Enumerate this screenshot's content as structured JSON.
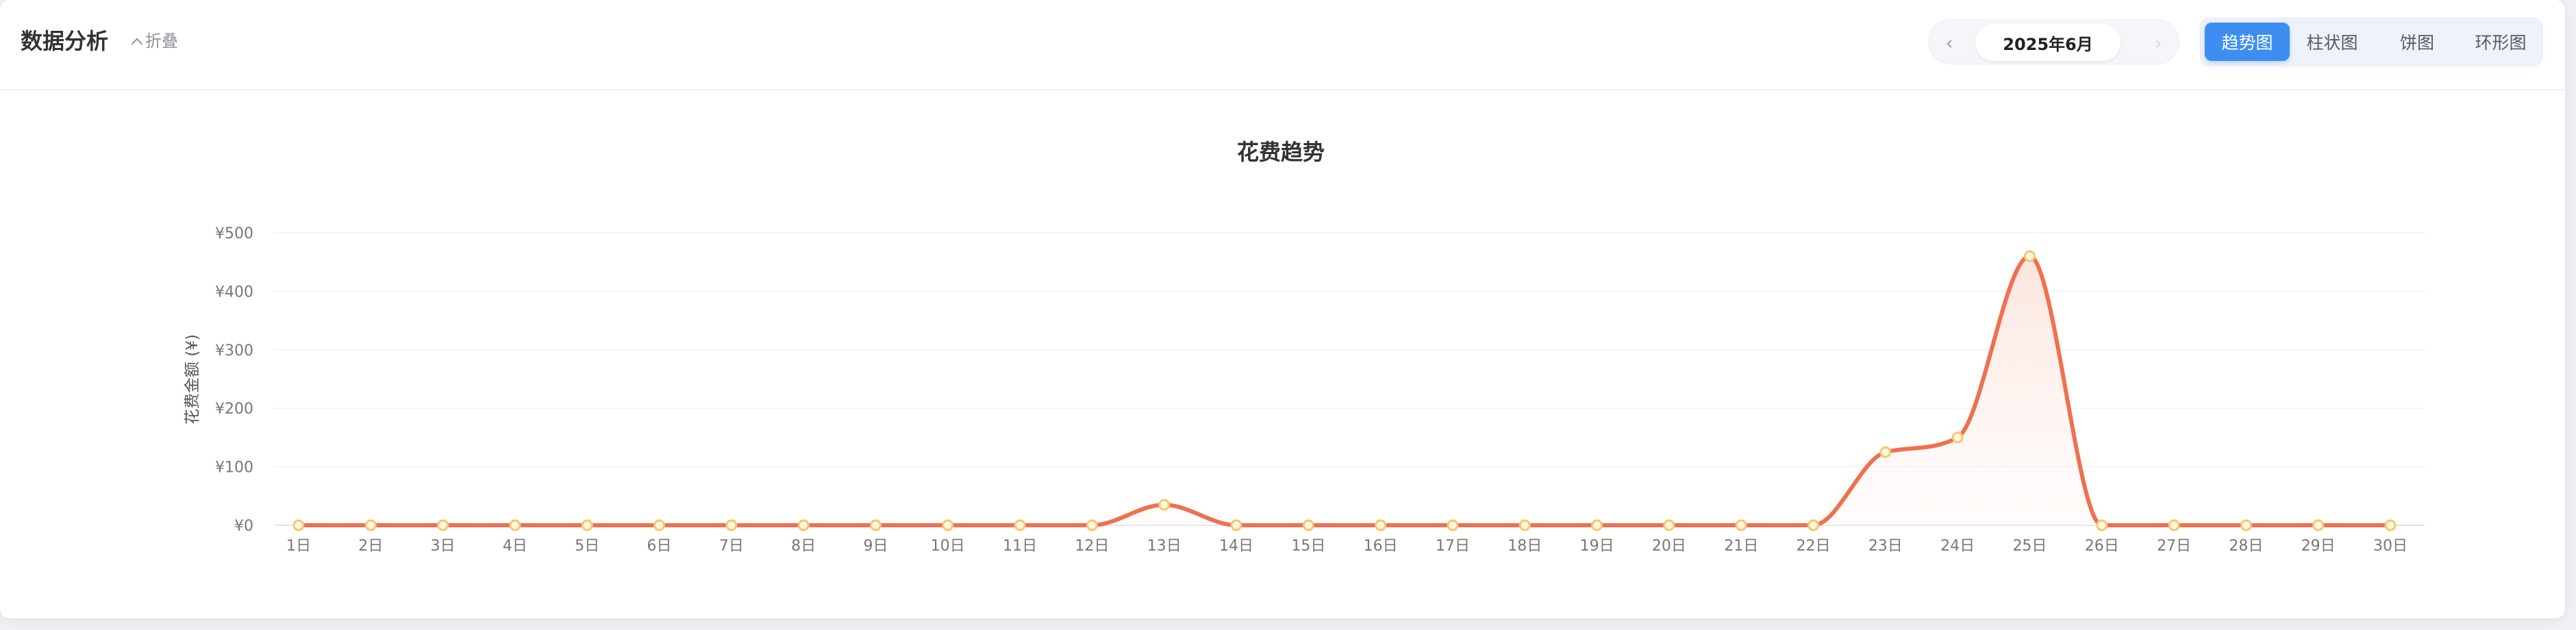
{
  "header": {
    "title": "数据分析",
    "collapse_label": "折叠",
    "month_label": "2025年6月",
    "prev_icon": "‹",
    "next_icon": "›",
    "tabs": [
      {
        "label": "趋势图",
        "active": true
      },
      {
        "label": "柱状图",
        "active": false
      },
      {
        "label": "饼图",
        "active": false
      },
      {
        "label": "环形图",
        "active": false
      }
    ]
  },
  "colors": {
    "accent": "#3d8ef0",
    "line": "#f0704e",
    "marker_fill": "#fff6e0",
    "marker_stroke": "#f5c770",
    "area": "#fbe4dc"
  },
  "chart_data": {
    "type": "area",
    "title": "花费趋势",
    "xlabel": "",
    "ylabel": "花费金额 (¥)",
    "ylim": [
      0,
      500
    ],
    "y_ticks": [
      "¥0",
      "¥100",
      "¥200",
      "¥300",
      "¥400",
      "¥500"
    ],
    "grid": true,
    "legend": "none",
    "categories": [
      "1日",
      "2日",
      "3日",
      "4日",
      "5日",
      "6日",
      "7日",
      "8日",
      "9日",
      "10日",
      "11日",
      "12日",
      "13日",
      "14日",
      "15日",
      "16日",
      "17日",
      "18日",
      "19日",
      "20日",
      "21日",
      "22日",
      "23日",
      "24日",
      "25日",
      "26日",
      "27日",
      "28日",
      "29日",
      "30日"
    ],
    "values": [
      0,
      0,
      0,
      0,
      0,
      0,
      0,
      0,
      0,
      0,
      0,
      0,
      35,
      0,
      0,
      0,
      0,
      0,
      0,
      0,
      0,
      0,
      125,
      150,
      460,
      0,
      0,
      0,
      0,
      0
    ]
  }
}
